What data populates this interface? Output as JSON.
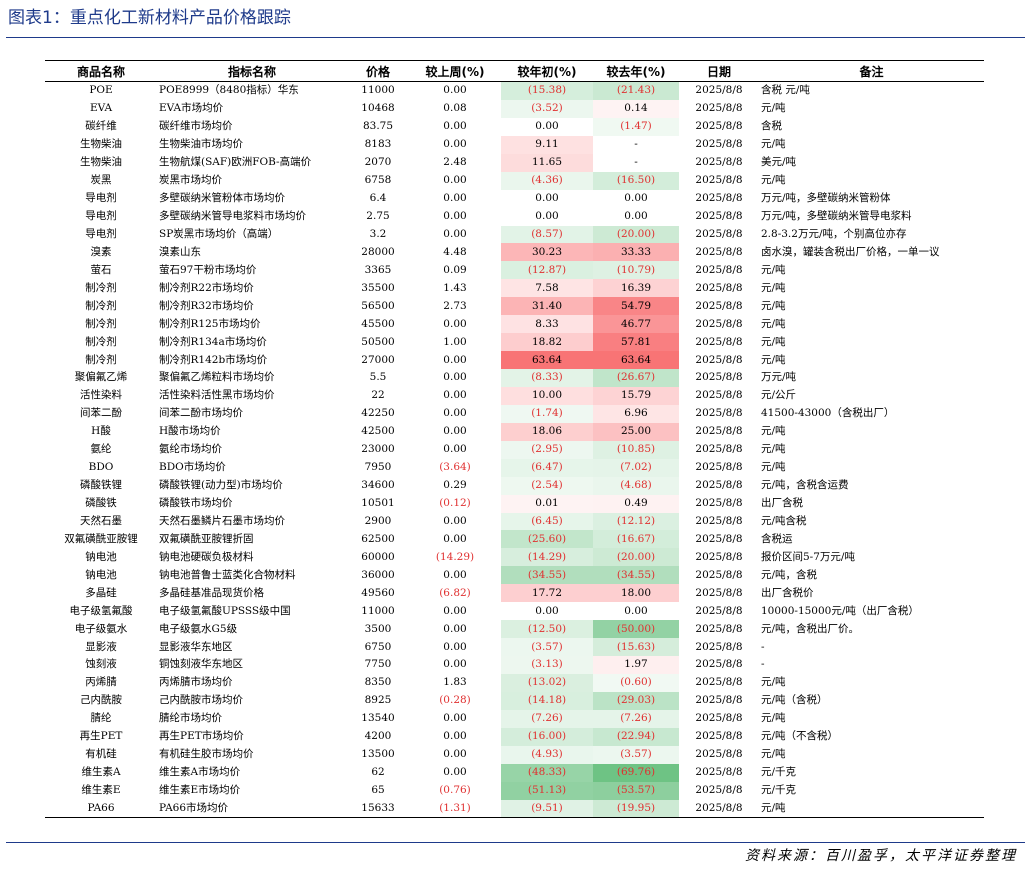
{
  "title": "图表1：重点化工新材料产品价格跟踪",
  "source": "资料来源：百川盈孚，太平洋证券整理",
  "table": {
    "columns": [
      "商品名称",
      "指标名称",
      "价格",
      "较上周(%)",
      "较年初(%)",
      "较去年(%)",
      "日期",
      "备注"
    ],
    "rows": [
      {
        "name": "POE",
        "indicator": "POE8999（8480指标）华东",
        "price": "11000",
        "wow": "0.00",
        "ytd": "(15.38)",
        "yoy": "(21.43)",
        "date": "2025/8/8",
        "note": "含税 元/吨"
      },
      {
        "name": "EVA",
        "indicator": "EVA市场均价",
        "price": "10468",
        "wow": "0.08",
        "ytd": "(3.52)",
        "yoy": "0.14",
        "date": "2025/8/8",
        "note": "元/吨"
      },
      {
        "name": "碳纤维",
        "indicator": "碳纤维市场均价",
        "price": "83.75",
        "wow": "0.00",
        "ytd": "0.00",
        "yoy": "(1.47)",
        "date": "2025/8/8",
        "note": "含税"
      },
      {
        "name": "生物柴油",
        "indicator": "生物柴油市场均价",
        "price": "8183",
        "wow": "0.00",
        "ytd": "9.11",
        "yoy": "-",
        "date": "2025/8/8",
        "note": "元/吨"
      },
      {
        "name": "生物柴油",
        "indicator": "生物航煤(SAF)欧洲FOB-高端价",
        "price": "2070",
        "wow": "2.48",
        "ytd": "11.65",
        "yoy": "-",
        "date": "2025/8/8",
        "note": "美元/吨"
      },
      {
        "name": "炭黑",
        "indicator": "炭黑市场均价",
        "price": "6758",
        "wow": "0.00",
        "ytd": "(4.36)",
        "yoy": "(16.50)",
        "date": "2025/8/8",
        "note": "元/吨"
      },
      {
        "name": "导电剂",
        "indicator": "多壁碳纳米管粉体市场均价",
        "price": "6.4",
        "wow": "0.00",
        "ytd": "0.00",
        "yoy": "0.00",
        "date": "2025/8/8",
        "note": "万元/吨，多壁碳纳米管粉体"
      },
      {
        "name": "导电剂",
        "indicator": "多壁碳纳米管导电浆料市场均价",
        "price": "2.75",
        "wow": "0.00",
        "ytd": "0.00",
        "yoy": "0.00",
        "date": "2025/8/8",
        "note": "万元/吨，多壁碳纳米管导电浆料"
      },
      {
        "name": "导电剂",
        "indicator": "SP炭黑市场均价（高端）",
        "price": "3.2",
        "wow": "0.00",
        "ytd": "(8.57)",
        "yoy": "(20.00)",
        "date": "2025/8/8",
        "note": "2.8-3.2万元/吨，个别高位亦存"
      },
      {
        "name": "溴素",
        "indicator": "溴素山东",
        "price": "28000",
        "wow": "4.48",
        "ytd": "30.23",
        "yoy": "33.33",
        "date": "2025/8/8",
        "note": "卤水溴，罐装含税出厂价格，一单一议"
      },
      {
        "name": "萤石",
        "indicator": "萤石97干粉市场均价",
        "price": "3365",
        "wow": "0.09",
        "ytd": "(12.87)",
        "yoy": "(10.79)",
        "date": "2025/8/8",
        "note": "元/吨"
      },
      {
        "name": "制冷剂",
        "indicator": "制冷剂R22市场均价",
        "price": "35500",
        "wow": "1.43",
        "ytd": "7.58",
        "yoy": "16.39",
        "date": "2025/8/8",
        "note": "元/吨"
      },
      {
        "name": "制冷剂",
        "indicator": "制冷剂R32市场均价",
        "price": "56500",
        "wow": "2.73",
        "ytd": "31.40",
        "yoy": "54.79",
        "date": "2025/8/8",
        "note": "元/吨"
      },
      {
        "name": "制冷剂",
        "indicator": "制冷剂R125市场均价",
        "price": "45500",
        "wow": "0.00",
        "ytd": "8.33",
        "yoy": "46.77",
        "date": "2025/8/8",
        "note": "元/吨"
      },
      {
        "name": "制冷剂",
        "indicator": "制冷剂R134a市场均价",
        "price": "50500",
        "wow": "1.00",
        "ytd": "18.82",
        "yoy": "57.81",
        "date": "2025/8/8",
        "note": "元/吨"
      },
      {
        "name": "制冷剂",
        "indicator": "制冷剂R142b市场均价",
        "price": "27000",
        "wow": "0.00",
        "ytd": "63.64",
        "yoy": "63.64",
        "date": "2025/8/8",
        "note": "元/吨"
      },
      {
        "name": "聚偏氟乙烯",
        "indicator": "聚偏氟乙烯粒料市场均价",
        "price": "5.5",
        "wow": "0.00",
        "ytd": "(8.33)",
        "yoy": "(26.67)",
        "date": "2025/8/8",
        "note": "万元/吨"
      },
      {
        "name": "活性染料",
        "indicator": "活性染料活性黑市场均价",
        "price": "22",
        "wow": "0.00",
        "ytd": "10.00",
        "yoy": "15.79",
        "date": "2025/8/8",
        "note": "元/公斤"
      },
      {
        "name": "间苯二酚",
        "indicator": "间苯二酚市场均价",
        "price": "42250",
        "wow": "0.00",
        "ytd": "(1.74)",
        "yoy": "6.96",
        "date": "2025/8/8",
        "note": "41500-43000（含税出厂）"
      },
      {
        "name": "H酸",
        "indicator": "H酸市场均价",
        "price": "42500",
        "wow": "0.00",
        "ytd": "18.06",
        "yoy": "25.00",
        "date": "2025/8/8",
        "note": "元/吨"
      },
      {
        "name": "氨纶",
        "indicator": "氨纶市场均价",
        "price": "23000",
        "wow": "0.00",
        "ytd": "(2.95)",
        "yoy": "(10.85)",
        "date": "2025/8/8",
        "note": "元/吨"
      },
      {
        "name": "BDO",
        "indicator": "BDO市场均价",
        "price": "7950",
        "wow": "(3.64)",
        "ytd": "(6.47)",
        "yoy": "(7.02)",
        "date": "2025/8/8",
        "note": "元/吨"
      },
      {
        "name": "磷酸铁锂",
        "indicator": "磷酸铁锂(动力型)市场均价",
        "price": "34600",
        "wow": "0.29",
        "ytd": "(2.54)",
        "yoy": "(4.68)",
        "date": "2025/8/8",
        "note": "元/吨，含税含运费"
      },
      {
        "name": "磷酸铁",
        "indicator": "磷酸铁市场均价",
        "price": "10501",
        "wow": "(0.12)",
        "ytd": "0.01",
        "yoy": "0.49",
        "date": "2025/8/8",
        "note": "出厂含税"
      },
      {
        "name": "天然石墨",
        "indicator": "天然石墨鳞片石墨市场均价",
        "price": "2900",
        "wow": "0.00",
        "ytd": "(6.45)",
        "yoy": "(12.12)",
        "date": "2025/8/8",
        "note": "元/吨含税"
      },
      {
        "name": "双氟磺酰亚胺锂",
        "indicator": "双氟磺酰亚胺锂折固",
        "price": "62500",
        "wow": "0.00",
        "ytd": "(25.60)",
        "yoy": "(16.67)",
        "date": "2025/8/8",
        "note": "含税运"
      },
      {
        "name": "钠电池",
        "indicator": "钠电池硬碳负极材料",
        "price": "60000",
        "wow": "(14.29)",
        "ytd": "(14.29)",
        "yoy": "(20.00)",
        "date": "2025/8/8",
        "note": "报价区间5-7万元/吨"
      },
      {
        "name": "钠电池",
        "indicator": "钠电池普鲁士蓝类化合物材料",
        "price": "36000",
        "wow": "0.00",
        "ytd": "(34.55)",
        "yoy": "(34.55)",
        "date": "2025/8/8",
        "note": "元/吨，含税"
      },
      {
        "name": "多晶硅",
        "indicator": "多晶硅基准品现货价格",
        "price": "49560",
        "wow": "(6.82)",
        "ytd": "17.72",
        "yoy": "18.00",
        "date": "2025/8/8",
        "note": "出厂含税价"
      },
      {
        "name": "电子级氢氟酸",
        "indicator": "电子级氢氟酸UPSSS级中国",
        "price": "11000",
        "wow": "0.00",
        "ytd": "0.00",
        "yoy": "0.00",
        "date": "2025/8/8",
        "note": "10000-15000元/吨（出厂含税）"
      },
      {
        "name": "电子级氨水",
        "indicator": "电子级氨水G5级",
        "price": "3500",
        "wow": "0.00",
        "ytd": "(12.50)",
        "yoy": "(50.00)",
        "date": "2025/8/8",
        "note": "元/吨，含税出厂价。"
      },
      {
        "name": "显影液",
        "indicator": "显影液华东地区",
        "price": "6750",
        "wow": "0.00",
        "ytd": "(3.57)",
        "yoy": "(15.63)",
        "date": "2025/8/8",
        "note": "-"
      },
      {
        "name": "蚀刻液",
        "indicator": "铜蚀刻液华东地区",
        "price": "7750",
        "wow": "0.00",
        "ytd": "(3.13)",
        "yoy": "1.97",
        "date": "2025/8/8",
        "note": "-"
      },
      {
        "name": "丙烯腈",
        "indicator": "丙烯腈市场均价",
        "price": "8350",
        "wow": "1.83",
        "ytd": "(13.02)",
        "yoy": "(0.60)",
        "date": "2025/8/8",
        "note": "元/吨"
      },
      {
        "name": "己内酰胺",
        "indicator": "己内酰胺市场均价",
        "price": "8925",
        "wow": "(0.28)",
        "ytd": "(14.18)",
        "yoy": "(29.03)",
        "date": "2025/8/8",
        "note": "元/吨（含税）"
      },
      {
        "name": "腈纶",
        "indicator": "腈纶市场均价",
        "price": "13540",
        "wow": "0.00",
        "ytd": "(7.26)",
        "yoy": "(7.26)",
        "date": "2025/8/8",
        "note": "元/吨"
      },
      {
        "name": "再生PET",
        "indicator": "再生PET市场均价",
        "price": "4200",
        "wow": "0.00",
        "ytd": "(16.00)",
        "yoy": "(22.94)",
        "date": "2025/8/8",
        "note": "元/吨（不含税）"
      },
      {
        "name": "有机硅",
        "indicator": "有机硅生胶市场均价",
        "price": "13500",
        "wow": "0.00",
        "ytd": "(4.93)",
        "yoy": "(3.57)",
        "date": "2025/8/8",
        "note": "元/吨"
      },
      {
        "name": "维生素A",
        "indicator": "维生素A市场均价",
        "price": "62",
        "wow": "0.00",
        "ytd": "(48.33)",
        "yoy": "(69.76)",
        "date": "2025/8/8",
        "note": "元/千克"
      },
      {
        "name": "维生素E",
        "indicator": "维生素E市场均价",
        "price": "65",
        "wow": "(0.76)",
        "ytd": "(51.13)",
        "yoy": "(53.57)",
        "date": "2025/8/8",
        "note": "元/千克"
      },
      {
        "name": "PA66",
        "indicator": "PA66市场均价",
        "price": "15633",
        "wow": "(1.31)",
        "ytd": "(9.51)",
        "yoy": "(19.95)",
        "date": "2025/8/8",
        "note": "元/吨"
      }
    ]
  },
  "heatmap_colors": {
    "positive": "#f8696b",
    "negative": "#63be7b",
    "neutral": "#ffffff",
    "negative_text": "#e03030"
  }
}
